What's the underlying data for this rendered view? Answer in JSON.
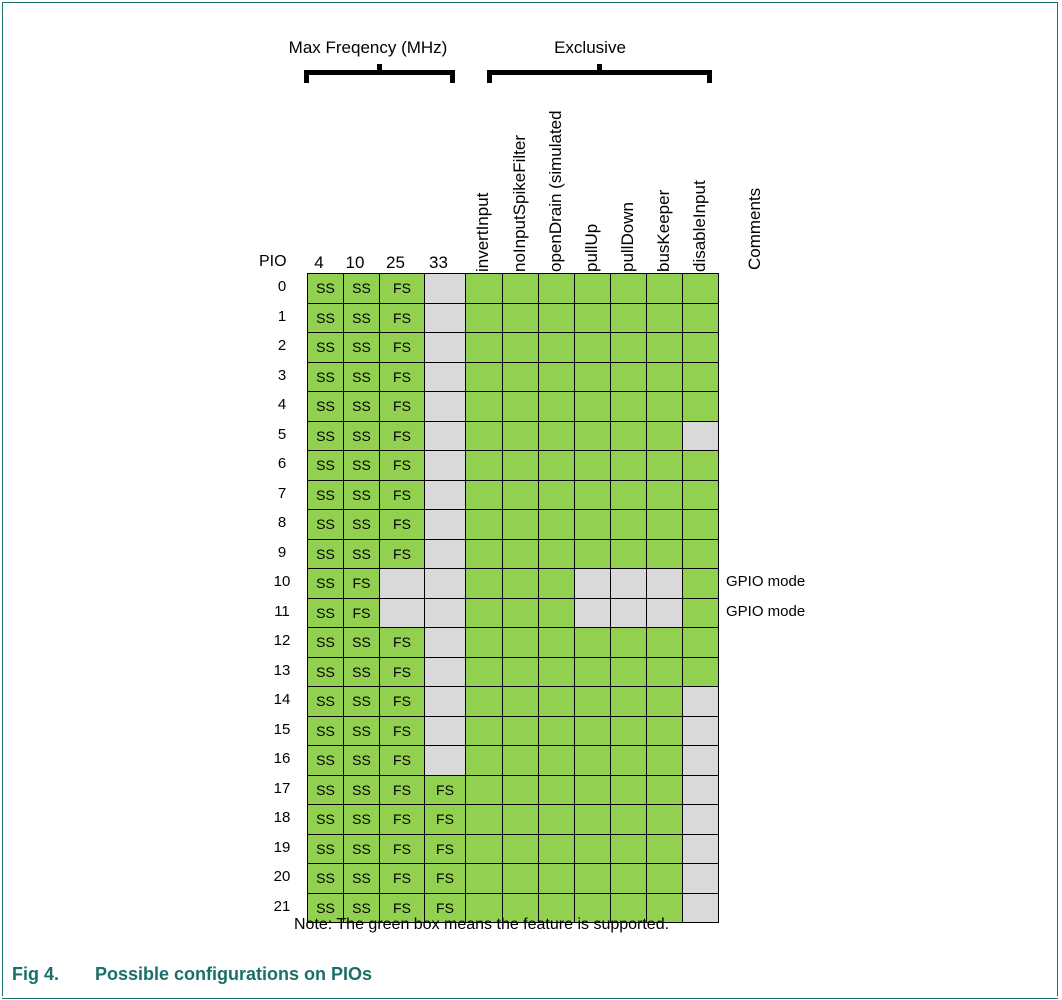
{
  "groups": {
    "max_freq": "Max Freqency (MHz)",
    "exclusive": "Exclusive"
  },
  "row_label": "PIO",
  "freq_columns": [
    "4",
    "10",
    "25",
    "33"
  ],
  "feature_columns": [
    "invertInput",
    "noInputSpikeFilter",
    "openDrain (simulated",
    "pullUp",
    "pullDown",
    "busKeeper",
    "disableInput"
  ],
  "comments_header": "Comments",
  "rows": [
    {
      "pio": "0",
      "cells": [
        "SS",
        "SS",
        "FS",
        "-",
        "Y",
        "Y",
        "Y",
        "Y",
        "Y",
        "Y",
        "Y"
      ],
      "comment": ""
    },
    {
      "pio": "1",
      "cells": [
        "SS",
        "SS",
        "FS",
        "-",
        "Y",
        "Y",
        "Y",
        "Y",
        "Y",
        "Y",
        "Y"
      ],
      "comment": ""
    },
    {
      "pio": "2",
      "cells": [
        "SS",
        "SS",
        "FS",
        "-",
        "Y",
        "Y",
        "Y",
        "Y",
        "Y",
        "Y",
        "Y"
      ],
      "comment": ""
    },
    {
      "pio": "3",
      "cells": [
        "SS",
        "SS",
        "FS",
        "-",
        "Y",
        "Y",
        "Y",
        "Y",
        "Y",
        "Y",
        "Y"
      ],
      "comment": ""
    },
    {
      "pio": "4",
      "cells": [
        "SS",
        "SS",
        "FS",
        "-",
        "Y",
        "Y",
        "Y",
        "Y",
        "Y",
        "Y",
        "Y"
      ],
      "comment": ""
    },
    {
      "pio": "5",
      "cells": [
        "SS",
        "SS",
        "FS",
        "-",
        "Y",
        "Y",
        "Y",
        "Y",
        "Y",
        "Y",
        "-"
      ],
      "comment": ""
    },
    {
      "pio": "6",
      "cells": [
        "SS",
        "SS",
        "FS",
        "-",
        "Y",
        "Y",
        "Y",
        "Y",
        "Y",
        "Y",
        "Y"
      ],
      "comment": ""
    },
    {
      "pio": "7",
      "cells": [
        "SS",
        "SS",
        "FS",
        "-",
        "Y",
        "Y",
        "Y",
        "Y",
        "Y",
        "Y",
        "Y"
      ],
      "comment": ""
    },
    {
      "pio": "8",
      "cells": [
        "SS",
        "SS",
        "FS",
        "-",
        "Y",
        "Y",
        "Y",
        "Y",
        "Y",
        "Y",
        "Y"
      ],
      "comment": ""
    },
    {
      "pio": "9",
      "cells": [
        "SS",
        "SS",
        "FS",
        "-",
        "Y",
        "Y",
        "Y",
        "Y",
        "Y",
        "Y",
        "Y"
      ],
      "comment": ""
    },
    {
      "pio": "10",
      "cells": [
        "SS",
        "FS",
        "-",
        "-",
        "Y",
        "Y",
        "Y",
        "-",
        "-",
        "-",
        "Y"
      ],
      "comment": "GPIO mode"
    },
    {
      "pio": "11",
      "cells": [
        "SS",
        "FS",
        "-",
        "-",
        "Y",
        "Y",
        "Y",
        "-",
        "-",
        "-",
        "Y"
      ],
      "comment": "GPIO mode"
    },
    {
      "pio": "12",
      "cells": [
        "SS",
        "SS",
        "FS",
        "-",
        "Y",
        "Y",
        "Y",
        "Y",
        "Y",
        "Y",
        "Y"
      ],
      "comment": ""
    },
    {
      "pio": "13",
      "cells": [
        "SS",
        "SS",
        "FS",
        "-",
        "Y",
        "Y",
        "Y",
        "Y",
        "Y",
        "Y",
        "Y"
      ],
      "comment": ""
    },
    {
      "pio": "14",
      "cells": [
        "SS",
        "SS",
        "FS",
        "-",
        "Y",
        "Y",
        "Y",
        "Y",
        "Y",
        "Y",
        "-"
      ],
      "comment": ""
    },
    {
      "pio": "15",
      "cells": [
        "SS",
        "SS",
        "FS",
        "-",
        "Y",
        "Y",
        "Y",
        "Y",
        "Y",
        "Y",
        "-"
      ],
      "comment": ""
    },
    {
      "pio": "16",
      "cells": [
        "SS",
        "SS",
        "FS",
        "-",
        "Y",
        "Y",
        "Y",
        "Y",
        "Y",
        "Y",
        "-"
      ],
      "comment": ""
    },
    {
      "pio": "17",
      "cells": [
        "SS",
        "SS",
        "FS",
        "FS",
        "Y",
        "Y",
        "Y",
        "Y",
        "Y",
        "Y",
        "-"
      ],
      "comment": ""
    },
    {
      "pio": "18",
      "cells": [
        "SS",
        "SS",
        "FS",
        "FS",
        "Y",
        "Y",
        "Y",
        "Y",
        "Y",
        "Y",
        "-"
      ],
      "comment": ""
    },
    {
      "pio": "19",
      "cells": [
        "SS",
        "SS",
        "FS",
        "FS",
        "Y",
        "Y",
        "Y",
        "Y",
        "Y",
        "Y",
        "-"
      ],
      "comment": ""
    },
    {
      "pio": "20",
      "cells": [
        "SS",
        "SS",
        "FS",
        "FS",
        "Y",
        "Y",
        "Y",
        "Y",
        "Y",
        "Y",
        "-"
      ],
      "comment": ""
    },
    {
      "pio": "21",
      "cells": [
        "SS",
        "SS",
        "FS",
        "FS",
        "Y",
        "Y",
        "Y",
        "Y",
        "Y",
        "Y",
        "-"
      ],
      "comment": ""
    }
  ],
  "note": "Note: The green box means the feature is supported.",
  "caption": {
    "number": "Fig 4.",
    "title": "Possible configurations on PIOs"
  },
  "colors": {
    "supported": "#92d050",
    "unsupported": "#d9d9d9",
    "caption": "#1a6f6a"
  }
}
